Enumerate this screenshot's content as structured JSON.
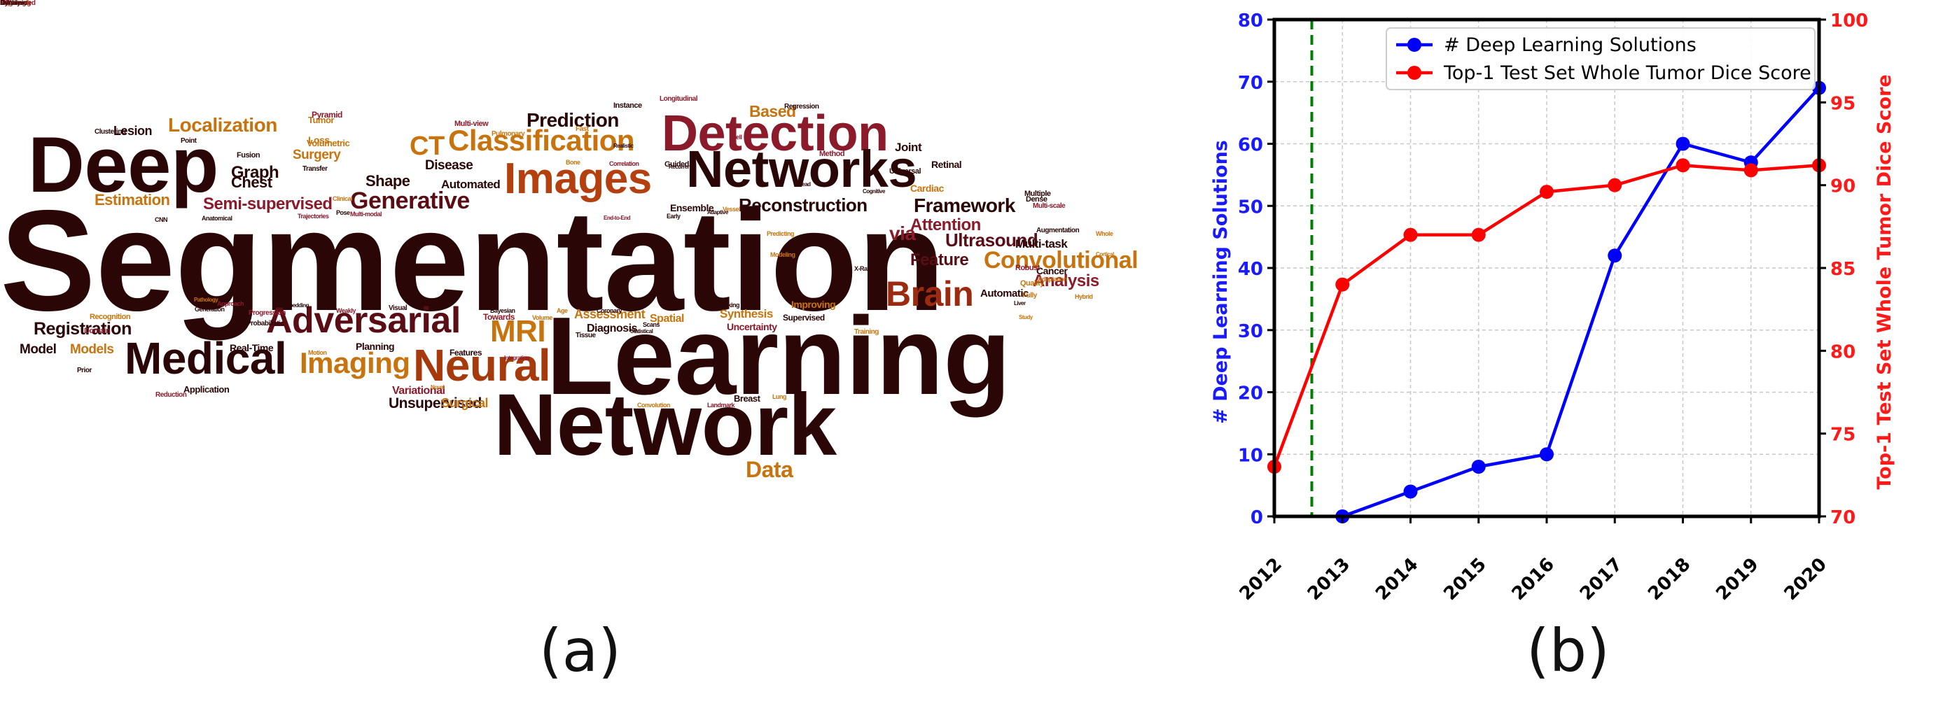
{
  "panel_labels": {
    "a": "(a)",
    "b": "(b)"
  },
  "word_cloud": {
    "words": [
      {
        "text": "Segmentation",
        "c": "#2a0606"
      },
      {
        "text": "Learning",
        "c": "#2a0606"
      },
      {
        "text": "Network",
        "c": "#2a0606"
      },
      {
        "text": "Deep",
        "c": "#2a0606"
      },
      {
        "text": "Detection",
        "c": "#8b1a2b"
      },
      {
        "text": "Networks",
        "c": "#2a0606"
      },
      {
        "text": "Images",
        "c": "#b5400f"
      },
      {
        "text": "Medical",
        "c": "#2a0606"
      },
      {
        "text": "Neural",
        "c": "#a63a0c"
      },
      {
        "text": "Adversarial",
        "c": "#5a0d14"
      },
      {
        "text": "Classification",
        "c": "#c8740e"
      },
      {
        "text": "Imaging",
        "c": "#c8740e"
      },
      {
        "text": "Brain",
        "c": "#9a2a10"
      },
      {
        "text": "Convolutional",
        "c": "#c8740e"
      },
      {
        "text": "MRI",
        "c": "#c8740e"
      },
      {
        "text": "Generative",
        "c": "#5a0d14"
      },
      {
        "text": "Prediction",
        "c": "#2a0606"
      },
      {
        "text": "Reconstruction",
        "c": "#2a0606"
      },
      {
        "text": "CT",
        "c": "#c8740e"
      },
      {
        "text": "Data",
        "c": "#c8740e"
      },
      {
        "text": "Registration",
        "c": "#2a0606"
      },
      {
        "text": "Ultrasound",
        "c": "#5a0d14"
      },
      {
        "text": "via",
        "c": "#8b1a2b"
      },
      {
        "text": "Framework",
        "c": "#2a0606"
      },
      {
        "text": "Based",
        "c": "#c8740e"
      },
      {
        "text": "Semi-supervised",
        "c": "#8b1a2b"
      },
      {
        "text": "Attention",
        "c": "#8b1a2b"
      },
      {
        "text": "Feature",
        "c": "#5a0d14"
      },
      {
        "text": "Graph",
        "c": "#2a0606"
      },
      {
        "text": "Localization",
        "c": "#c8740e"
      },
      {
        "text": "Estimation",
        "c": "#c8740e"
      },
      {
        "text": "Analysis",
        "c": "#8b1a2b"
      },
      {
        "text": "Shape",
        "c": "#2a0606"
      },
      {
        "text": "Chest",
        "c": "#2a0606"
      },
      {
        "text": "Surgery",
        "c": "#c8740e"
      },
      {
        "text": "Unsupervised",
        "c": "#2a0606"
      },
      {
        "text": "Assessment",
        "c": "#c8740e"
      },
      {
        "text": "Model",
        "c": "#2a0606"
      },
      {
        "text": "Models",
        "c": "#c8740e"
      },
      {
        "text": "Lesion",
        "c": "#2a0606"
      },
      {
        "text": "Disease",
        "c": "#2a0606"
      },
      {
        "text": "Surgical",
        "c": "#c8740e"
      },
      {
        "text": "Automated",
        "c": "#2a0606"
      },
      {
        "text": "Diagnosis",
        "c": "#2a0606"
      },
      {
        "text": "Synthesis",
        "c": "#c8740e"
      },
      {
        "text": "Joint",
        "c": "#2a0606"
      },
      {
        "text": "Cardiac",
        "c": "#c8740e"
      },
      {
        "text": "Multi-task",
        "c": "#2a0606"
      },
      {
        "text": "Automatic",
        "c": "#2a0606"
      },
      {
        "text": "Spatial",
        "c": "#c8740e"
      },
      {
        "text": "Uncertainty",
        "c": "#8b1a2b"
      },
      {
        "text": "Variational",
        "c": "#8b1a2b"
      },
      {
        "text": "Tumor",
        "c": "#c8740e"
      },
      {
        "text": "Loss",
        "c": "#c8740e"
      },
      {
        "text": "Volumetric",
        "c": "#c8740e"
      },
      {
        "text": "Real-Time",
        "c": "#2a0606"
      },
      {
        "text": "Retinal",
        "c": "#2a0606"
      },
      {
        "text": "Cancer",
        "c": "#2a0606"
      },
      {
        "text": "Improving",
        "c": "#c8740e"
      },
      {
        "text": "Supervised",
        "c": "#2a0606"
      },
      {
        "text": "Towards",
        "c": "#8b1a2b"
      },
      {
        "text": "Planning",
        "c": "#2a0606"
      },
      {
        "text": "Features",
        "c": "#2a0606"
      },
      {
        "text": "Breast",
        "c": "#2a0606"
      },
      {
        "text": "Quality",
        "c": "#c8740e"
      },
      {
        "text": "Robust",
        "c": "#8b1a2b"
      },
      {
        "text": "Dense",
        "c": "#2a0606"
      },
      {
        "text": "Multiple",
        "c": "#2a0606"
      },
      {
        "text": "Pyramid",
        "c": "#8b1a2b"
      },
      {
        "text": "Application",
        "c": "#2a0606"
      },
      {
        "text": "Recognition",
        "c": "#c8740e"
      },
      {
        "text": "Domain",
        "c": "#8b1a2b"
      },
      {
        "text": "Transfer",
        "c": "#2a0606"
      },
      {
        "text": "Method",
        "c": "#8b1a2b"
      },
      {
        "text": "Regression",
        "c": "#2a0606"
      },
      {
        "text": "Instance",
        "c": "#2a0606"
      },
      {
        "text": "Longitudinal",
        "c": "#8b1a2b"
      },
      {
        "text": "Multi-view",
        "c": "#8b1a2b"
      },
      {
        "text": "Pulmonary",
        "c": "#c8740e"
      },
      {
        "text": "Point",
        "c": "#2a0606"
      },
      {
        "text": "Clustering",
        "c": "#2a0606"
      },
      {
        "text": "Fusion",
        "c": "#2a0606"
      },
      {
        "text": "Guided",
        "c": "#2a0606"
      },
      {
        "text": "Augmentation",
        "c": "#2a0606"
      },
      {
        "text": "Training",
        "c": "#c8740e"
      },
      {
        "text": "Multi-scale",
        "c": "#8b1a2b"
      },
      {
        "text": "Fully",
        "c": "#c8740e"
      },
      {
        "text": "Liver",
        "c": "#2a0606"
      },
      {
        "text": "Reduction",
        "c": "#8b1a2b"
      },
      {
        "text": "Prior",
        "c": "#2a0606"
      },
      {
        "text": "Probabilistic",
        "c": "#2a0606"
      },
      {
        "text": "Progression",
        "c": "#8b1a2b"
      },
      {
        "text": "Approach",
        "c": "#8b1a2b"
      },
      {
        "text": "Generation",
        "c": "#2a0606"
      },
      {
        "text": "Whole",
        "c": "#c8740e"
      },
      {
        "text": "Weakly",
        "c": "#8b1a2b"
      },
      {
        "text": "Visual",
        "c": "#2a0606"
      },
      {
        "text": "Bayesian",
        "c": "#2a0606"
      },
      {
        "text": "Age",
        "c": "#c8740e"
      },
      {
        "text": "Coronary",
        "c": "#2a0606"
      },
      {
        "text": "Tissue",
        "c": "#2a0606"
      },
      {
        "text": "Tracking",
        "c": "#2a0606"
      },
      {
        "text": "Volume",
        "c": "#c8740e"
      },
      {
        "text": "Motion",
        "c": "#c8740e"
      },
      {
        "text": "Lung",
        "c": "#c8740e"
      },
      {
        "text": "Landmark",
        "c": "#8b1a2b"
      },
      {
        "text": "Convolution",
        "c": "#c8740e"
      },
      {
        "text": "Scans",
        "c": "#2a0606"
      },
      {
        "text": "Correlation",
        "c": "#8b1a2b"
      },
      {
        "text": "Vessel",
        "c": "#c8740e"
      },
      {
        "text": "Predicting",
        "c": "#c8740e"
      },
      {
        "text": "Modeling",
        "c": "#c8740e"
      },
      {
        "text": "X-Ray",
        "c": "#2a0606"
      },
      {
        "text": "Cortical",
        "c": "#c8740e"
      },
      {
        "text": "Adaptation",
        "c": "#c8740e"
      },
      {
        "text": "Hybrid",
        "c": "#c8740e"
      },
      {
        "text": "Study",
        "c": "#c8740e"
      },
      {
        "text": "Cell",
        "c": "#8b1a2b"
      },
      {
        "text": "Bone",
        "c": "#c8740e"
      },
      {
        "text": "Fast",
        "c": "#c8740e"
      },
      {
        "text": "Clinical",
        "c": "#c8740e"
      },
      {
        "text": "Pose",
        "c": "#2a0606"
      },
      {
        "text": "Trajectories",
        "c": "#8b1a2b"
      },
      {
        "text": "Multi-modal",
        "c": "#8b1a2b"
      },
      {
        "text": "Pathology",
        "c": "#c8740e"
      },
      {
        "text": "Anatomical",
        "c": "#2a0606"
      },
      {
        "text": "CNN",
        "c": "#2a0606"
      },
      {
        "text": "Embedding",
        "c": "#2a0606"
      },
      {
        "text": "Novel",
        "c": "#c8740e"
      },
      {
        "text": "Integrating",
        "c": "#8b1a2b"
      },
      {
        "text": "Statistical",
        "c": "#2a0606"
      },
      {
        "text": "Adaptive",
        "c": "#2a0606"
      },
      {
        "text": "Head",
        "c": "#2a0606"
      },
      {
        "text": "Cognitive",
        "c": "#2a0606"
      },
      {
        "text": "Realistic",
        "c": "#2a0606"
      },
      {
        "text": "Early",
        "c": "#2a0606"
      },
      {
        "text": "Recurrent",
        "c": "#2a0606"
      },
      {
        "text": "End-to-End",
        "c": "#8b1a2b"
      },
      {
        "text": "Ensemble",
        "c": "#2a0606"
      },
      {
        "text": "Universal",
        "c": "#2a0606"
      },
      {
        "text": "Labeling",
        "c": "#8b1a2b"
      },
      {
        "text": "U-Net",
        "c": "#2a0606"
      },
      {
        "text": "Reality",
        "c": "#2a0606"
      },
      {
        "text": "Denoising",
        "c": "#8b1a2b"
      },
      {
        "text": "Improved",
        "c": "#c8740e"
      },
      {
        "text": "Augmented",
        "c": "#8b1a2b"
      },
      {
        "text": "MR",
        "c": "#8b1a2b"
      },
      {
        "text": "Dynamic",
        "c": "#2a0606"
      }
    ]
  },
  "chart_data": {
    "type": "line",
    "x": [
      2012,
      2013,
      2014,
      2015,
      2016,
      2017,
      2018,
      2019,
      2020
    ],
    "x_ticks": [
      "2012",
      "2013",
      "2014",
      "2015",
      "2016",
      "2017",
      "2018",
      "2019",
      "2020"
    ],
    "xlim": [
      2012,
      2020
    ],
    "ylabel_left": "# Deep Learning Solutions",
    "ylabel_right": "Top-1 Test Set Whole Tumor Dice Score",
    "ylim_left": [
      0,
      80
    ],
    "ylim_right": [
      70,
      100
    ],
    "yticks_left": [
      "0",
      "10",
      "20",
      "30",
      "40",
      "50",
      "60",
      "70",
      "80"
    ],
    "yticks_right": [
      "70",
      "75",
      "80",
      "85",
      "90",
      "95",
      "100"
    ],
    "grid": true,
    "legend_location": "top-right",
    "series": [
      {
        "name": "# Deep Learning Solutions",
        "axis": "left",
        "color": "#0000ff",
        "x": [
          2013,
          2014,
          2015,
          2016,
          2017,
          2018,
          2019,
          2020
        ],
        "values": [
          0,
          4,
          8,
          10,
          42,
          60,
          57,
          69
        ]
      },
      {
        "name": "Top-1 Test Set Whole Tumor Dice Score",
        "axis": "right",
        "color": "#ff0000",
        "x": [
          2012,
          2013,
          2014,
          2015,
          2016,
          2017,
          2018,
          2019,
          2020
        ],
        "values": [
          73,
          84,
          87,
          87,
          89.6,
          90,
          91.2,
          90.9,
          91.2
        ]
      }
    ],
    "vline": {
      "x": 2012.55,
      "color": "#008000",
      "style": "dashed"
    }
  }
}
